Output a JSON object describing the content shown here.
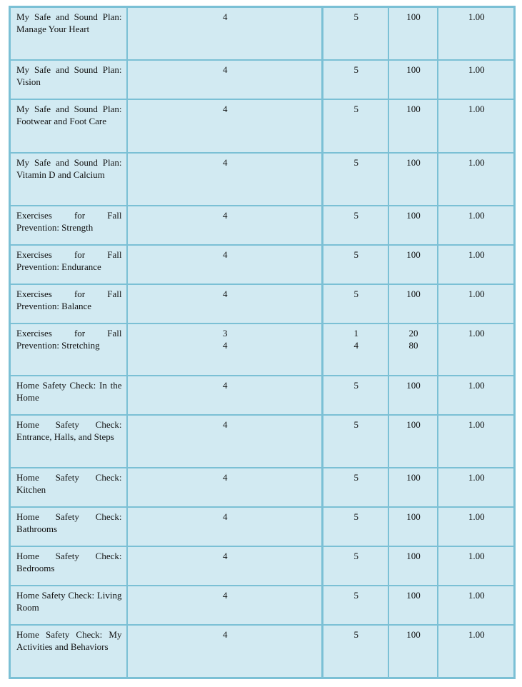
{
  "rows": [
    {
      "name": "My Safe and Sound Plan: Manage Your Heart",
      "a": [
        "4"
      ],
      "b": [
        "5"
      ],
      "c": [
        "100"
      ],
      "d": "1.00"
    },
    {
      "name": "My Safe and Sound Plan: Vision",
      "a": [
        "4"
      ],
      "b": [
        "5"
      ],
      "c": [
        "100"
      ],
      "d": "1.00"
    },
    {
      "name": "My Safe and Sound Plan: Footwear and Foot Care",
      "a": [
        "4"
      ],
      "b": [
        "5"
      ],
      "c": [
        "100"
      ],
      "d": "1.00"
    },
    {
      "name": "My Safe and Sound Plan: Vitamin D and Calcium",
      "a": [
        "4"
      ],
      "b": [
        "5"
      ],
      "c": [
        "100"
      ],
      "d": "1.00"
    },
    {
      "name": "Exercises for Fall Prevention: Strength",
      "a": [
        "4"
      ],
      "b": [
        "5"
      ],
      "c": [
        "100"
      ],
      "d": "1.00"
    },
    {
      "name": "Exercises for Fall Prevention: Endurance",
      "a": [
        "4"
      ],
      "b": [
        "5"
      ],
      "c": [
        "100"
      ],
      "d": "1.00"
    },
    {
      "name": "Exercises for Fall Prevention: Balance",
      "a": [
        "4"
      ],
      "b": [
        "5"
      ],
      "c": [
        "100"
      ],
      "d": "1.00"
    },
    {
      "name": "Exercises for Fall Prevention: Stretching",
      "a": [
        "3",
        "4"
      ],
      "b": [
        "1",
        "4"
      ],
      "c": [
        "20",
        "80"
      ],
      "d": "1.00"
    },
    {
      "name": "Home Safety Check: In the Home",
      "a": [
        "4"
      ],
      "b": [
        "5"
      ],
      "c": [
        "100"
      ],
      "d": "1.00"
    },
    {
      "name": "Home Safety Check: Entrance, Halls, and Steps",
      "a": [
        "4"
      ],
      "b": [
        "5"
      ],
      "c": [
        "100"
      ],
      "d": "1.00"
    },
    {
      "name": "Home Safety Check: Kitchen",
      "a": [
        "4"
      ],
      "b": [
        "5"
      ],
      "c": [
        "100"
      ],
      "d": "1.00"
    },
    {
      "name": "Home Safety Check: Bathrooms",
      "a": [
        "4"
      ],
      "b": [
        "5"
      ],
      "c": [
        "100"
      ],
      "d": "1.00"
    },
    {
      "name": "Home Safety Check: Bedrooms",
      "a": [
        "4"
      ],
      "b": [
        "5"
      ],
      "c": [
        "100"
      ],
      "d": "1.00"
    },
    {
      "name": "Home Safety Check: Living Room",
      "a": [
        "4"
      ],
      "b": [
        "5"
      ],
      "c": [
        "100"
      ],
      "d": "1.00"
    },
    {
      "name": "Home Safety Check: My Activities and Behaviors",
      "a": [
        "4"
      ],
      "b": [
        "5"
      ],
      "c": [
        "100"
      ],
      "d": "1.00"
    }
  ]
}
